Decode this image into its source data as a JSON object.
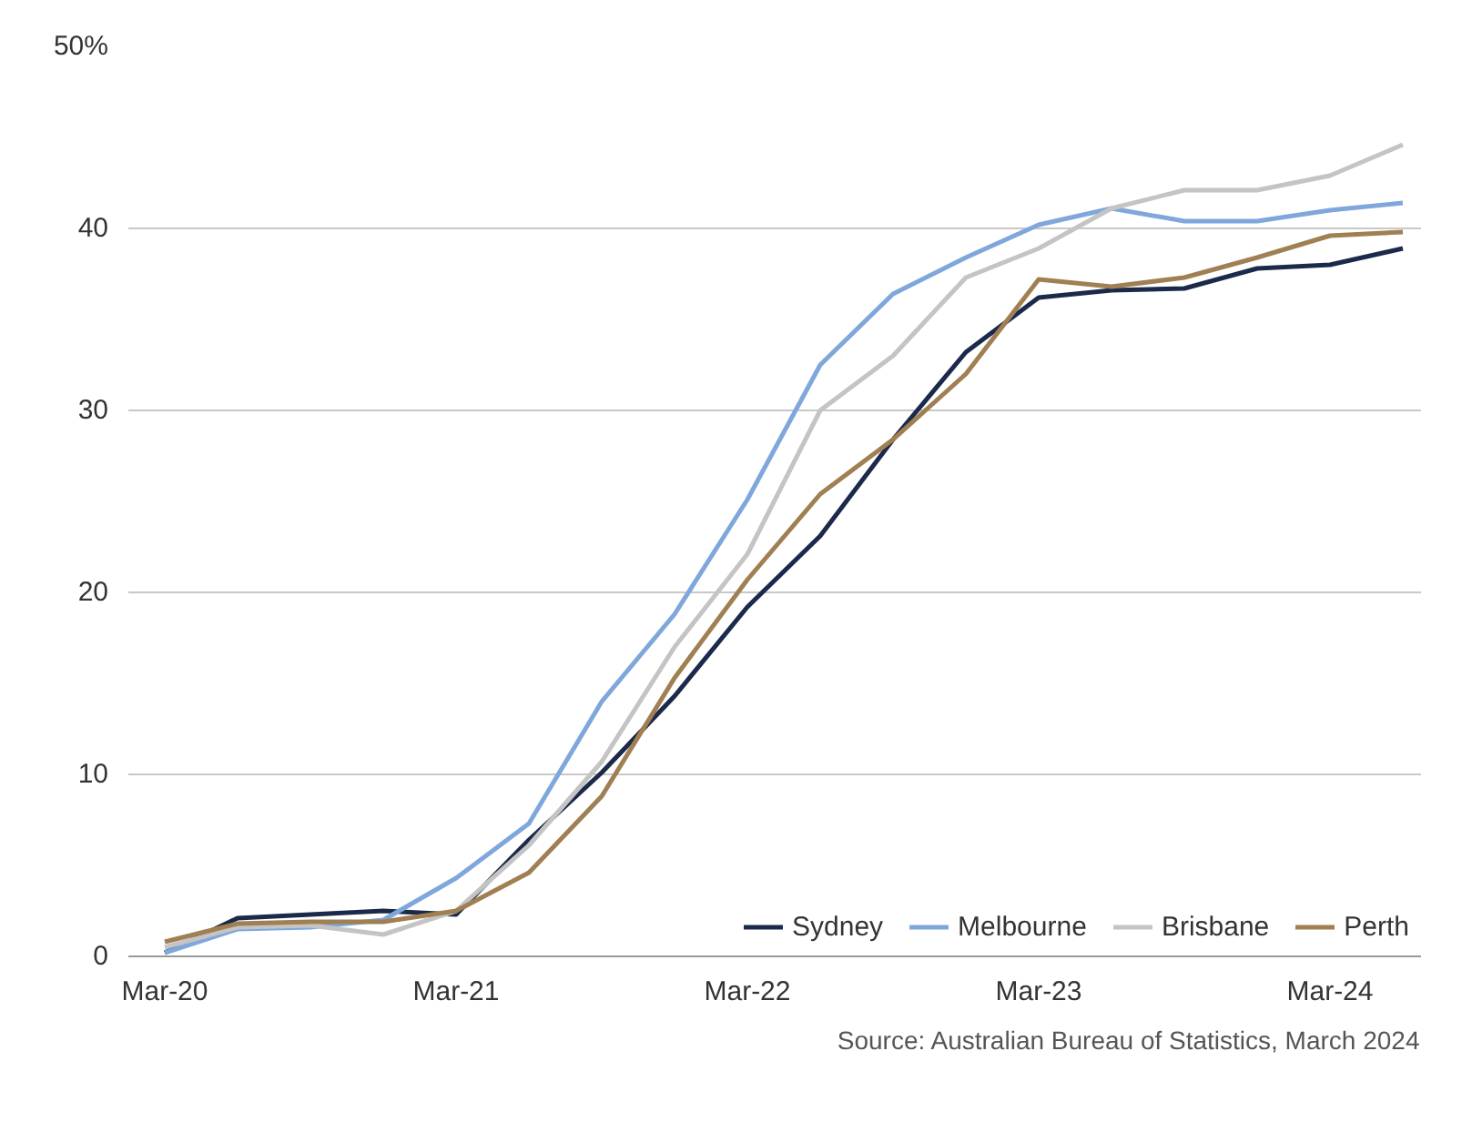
{
  "chart_data": {
    "type": "line",
    "categories": [
      "Mar-20",
      null,
      null,
      null,
      "Mar-21",
      null,
      null,
      null,
      "Mar-22",
      null,
      null,
      null,
      "Mar-23",
      null,
      null,
      null,
      "Mar-24",
      null
    ],
    "series": [
      {
        "name": "Sydney",
        "color": "#1b2a4a",
        "values": [
          0.2,
          2.1,
          2.3,
          2.5,
          2.3,
          6.4,
          10.1,
          14.3,
          19.2,
          23.1,
          28.4,
          33.2,
          36.2,
          36.6,
          36.7,
          37.8,
          38.0,
          38.9
        ]
      },
      {
        "name": "Melbourne",
        "color": "#7fa7dc",
        "values": [
          0.2,
          1.5,
          1.6,
          2.0,
          4.3,
          7.3,
          14.0,
          18.8,
          25.1,
          32.5,
          36.4,
          38.4,
          40.2,
          41.1,
          40.4,
          40.4,
          41.0,
          41.4
        ]
      },
      {
        "name": "Brisbane",
        "color": "#c4c4c4",
        "values": [
          0.5,
          1.6,
          1.7,
          1.2,
          2.5,
          6.1,
          10.7,
          17.0,
          22.1,
          30.0,
          33.0,
          37.3,
          38.9,
          41.1,
          42.1,
          42.1,
          42.9,
          44.6
        ]
      },
      {
        "name": "Perth",
        "color": "#a07f52",
        "values": [
          0.8,
          1.8,
          1.9,
          1.9,
          2.5,
          4.6,
          8.8,
          15.3,
          20.7,
          25.4,
          28.4,
          32.0,
          37.2,
          36.8,
          37.3,
          38.4,
          39.6,
          39.8
        ]
      }
    ],
    "ylim": [
      0,
      50
    ],
    "yticks": [
      0,
      10,
      20,
      30,
      40,
      {
        "value": 50,
        "label": "50%"
      }
    ],
    "grid": "y",
    "legend": "bottom right",
    "marker": "none",
    "line_style": "solid",
    "annotations": [
      "Source: Australian Bureau of Statistics, March 2024"
    ]
  }
}
